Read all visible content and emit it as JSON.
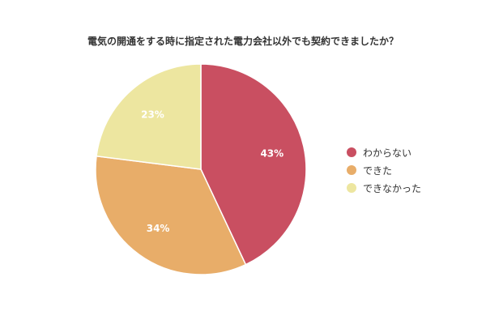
{
  "chart_data": {
    "type": "pie",
    "title": "電気の開通をする時に指定された電力会社以外でも契約できましたか？",
    "categories": [
      "わからない",
      "できた",
      "できなかった"
    ],
    "values": [
      43,
      34,
      23
    ],
    "labels": [
      "43%",
      "34%",
      "23%"
    ],
    "colors": [
      "#c94f61",
      "#e8ad69",
      "#ede6a0"
    ],
    "legend_position": "right"
  }
}
